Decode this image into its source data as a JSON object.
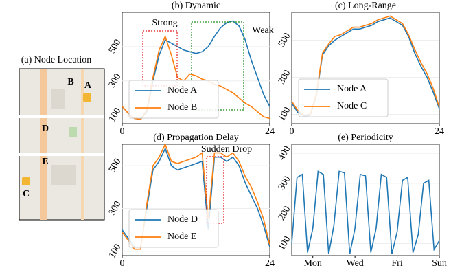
{
  "map": {
    "title": "(a) Node Location",
    "labels": [
      "A",
      "B",
      "C",
      "D",
      "E"
    ]
  },
  "chart_data": [
    {
      "type": "line",
      "title": "(b) Dynamic",
      "xlim": [
        0,
        24
      ],
      "xticks": [
        0,
        24
      ],
      "ylim": [
        50,
        700
      ],
      "yticks": [
        100,
        300,
        500
      ],
      "grid": true,
      "legend": "lower left",
      "x": [
        0,
        1,
        2,
        3,
        4,
        5,
        6,
        7,
        8,
        9,
        10,
        11,
        12,
        13,
        14,
        15,
        16,
        17,
        18,
        19,
        20,
        21,
        22,
        23,
        24
      ],
      "series": [
        {
          "name": "Node A",
          "color": "#1f77b4",
          "values": [
            150,
            110,
            80,
            75,
            120,
            300,
            450,
            540,
            520,
            500,
            480,
            470,
            460,
            470,
            500,
            560,
            610,
            640,
            650,
            620,
            540,
            420,
            320,
            220,
            150
          ]
        },
        {
          "name": "Node B",
          "color": "#ff7f0e",
          "values": [
            150,
            110,
            80,
            75,
            130,
            320,
            480,
            560,
            450,
            320,
            300,
            340,
            330,
            310,
            300,
            280,
            270,
            250,
            230,
            200,
            170,
            150,
            120,
            90,
            80
          ]
        }
      ],
      "annotations": [
        {
          "text": "Strong",
          "color": "#e31a1c"
        },
        {
          "text": "Weak",
          "color": "#1a8c1a"
        }
      ]
    },
    {
      "type": "line",
      "title": "(c) Long-Range",
      "xlim": [
        0,
        24
      ],
      "xticks": [
        0,
        24
      ],
      "ylim": [
        50,
        650
      ],
      "yticks": [
        100,
        300,
        500
      ],
      "grid": true,
      "legend": "lower left",
      "x": [
        0,
        1,
        2,
        3,
        4,
        5,
        6,
        7,
        8,
        9,
        10,
        11,
        12,
        13,
        14,
        15,
        16,
        17,
        18,
        19,
        20,
        21,
        22,
        23,
        24
      ],
      "series": [
        {
          "name": "Node A",
          "color": "#1f77b4",
          "values": [
            160,
            110,
            90,
            95,
            200,
            420,
            470,
            500,
            520,
            540,
            560,
            560,
            570,
            580,
            600,
            610,
            620,
            600,
            580,
            520,
            430,
            360,
            300,
            220,
            130
          ]
        },
        {
          "name": "Node C",
          "color": "#ff7f0e",
          "values": [
            170,
            120,
            95,
            100,
            210,
            430,
            480,
            520,
            530,
            550,
            570,
            570,
            580,
            590,
            610,
            620,
            630,
            610,
            590,
            530,
            450,
            380,
            320,
            240,
            140
          ]
        }
      ]
    },
    {
      "type": "line",
      "title": "(d) Propagation Delay",
      "xlim": [
        0,
        24
      ],
      "xticks": [
        0,
        24
      ],
      "ylim": [
        80,
        600
      ],
      "yticks": [
        100,
        300,
        500
      ],
      "grid": true,
      "legend": "lower left",
      "x": [
        0,
        1,
        2,
        3,
        4,
        5,
        6,
        7,
        8,
        9,
        10,
        11,
        12,
        13,
        14,
        15,
        16,
        17,
        18,
        19,
        20,
        21,
        22,
        23,
        24
      ],
      "series": [
        {
          "name": "Node D",
          "color": "#1f77b4",
          "values": [
            200,
            160,
            120,
            120,
            300,
            480,
            520,
            580,
            500,
            480,
            490,
            500,
            510,
            520,
            200,
            540,
            540,
            520,
            540,
            500,
            420,
            360,
            300,
            220,
            120
          ]
        },
        {
          "name": "Node E",
          "color": "#ff7f0e",
          "values": [
            190,
            150,
            110,
            110,
            320,
            500,
            540,
            600,
            520,
            510,
            520,
            530,
            540,
            560,
            250,
            560,
            560,
            540,
            560,
            520,
            450,
            400,
            330,
            250,
            130
          ]
        }
      ],
      "annotations": [
        {
          "text": "Sudden Drop",
          "color": "#e31a1c"
        }
      ]
    },
    {
      "type": "line",
      "title": "(e) Periodicity",
      "xlim": [
        0,
        7
      ],
      "xticks": [
        {
          "value": 1,
          "label": "Mon"
        },
        {
          "value": 3,
          "label": "Wed"
        },
        {
          "value": 5,
          "label": "Fri"
        },
        {
          "value": 7,
          "label": "Sun"
        }
      ],
      "ylim": [
        60,
        430
      ],
      "yticks": [
        100,
        200,
        300,
        400
      ],
      "grid": true,
      "x": [
        0,
        0.25,
        0.5,
        0.75,
        1,
        1.25,
        1.5,
        1.75,
        2,
        2.25,
        2.5,
        2.75,
        3,
        3.25,
        3.5,
        3.75,
        4,
        4.25,
        4.5,
        4.75,
        5,
        5.25,
        5.5,
        5.75,
        6,
        6.25,
        6.5,
        6.75,
        7
      ],
      "series": [
        {
          "color": "#1f77b4",
          "values": [
            100,
            320,
            330,
            70,
            150,
            340,
            330,
            65,
            160,
            340,
            335,
            65,
            150,
            330,
            325,
            70,
            150,
            330,
            320,
            65,
            140,
            310,
            320,
            70,
            130,
            300,
            310,
            80,
            110
          ]
        }
      ]
    }
  ]
}
